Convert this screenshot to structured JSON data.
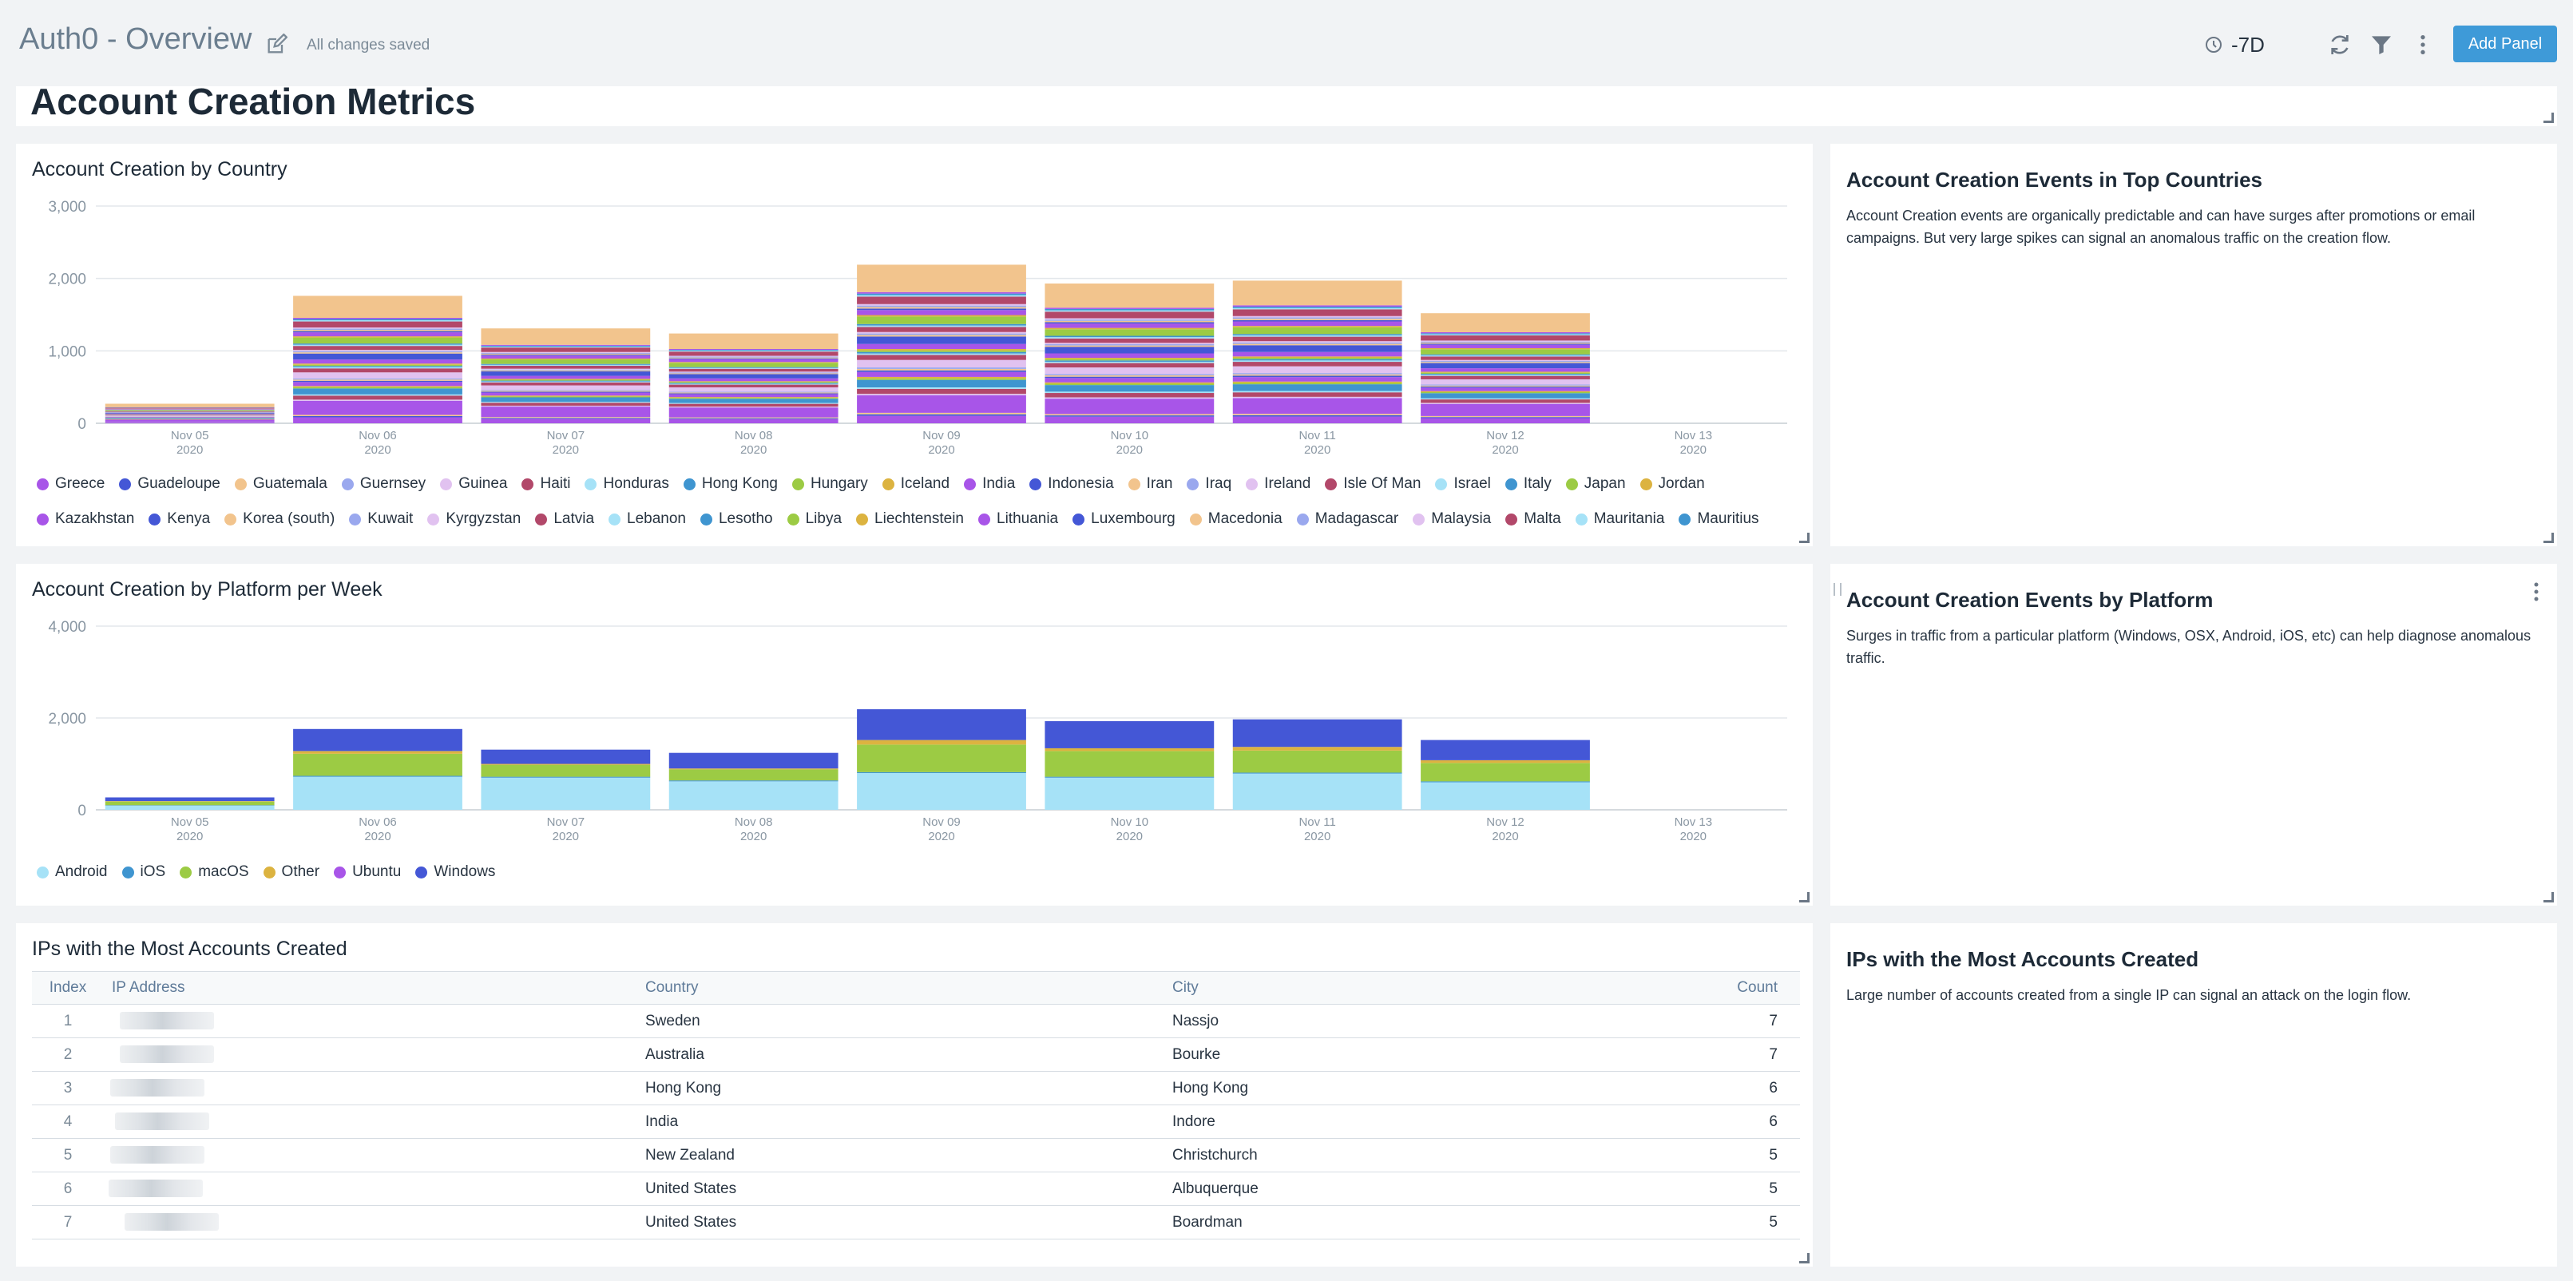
{
  "header": {
    "title": "Auth0 - Overview",
    "saved_status": "All changes saved",
    "time_range": "-7D",
    "add_panel_label": "Add Panel"
  },
  "section_title": "Account Creation Metrics",
  "panels": {
    "country_chart": {
      "title": "Account Creation by Country"
    },
    "country_text": {
      "title": "Account Creation Events in Top Countries",
      "body": "Account Creation events are organically predictable and can have surges after promotions or email campaigns. But very large spikes can signal an anomalous traffic on the creation flow."
    },
    "platform_chart": {
      "title": "Account Creation by Platform per Week"
    },
    "platform_text": {
      "title": "Account Creation Events by Platform",
      "body": "Surges in traffic from a particular platform (Windows, OSX, Android, iOS, etc) can help diagnose anomalous traffic."
    },
    "ip_table": {
      "title": "IPs with the Most Accounts Created"
    },
    "ip_text": {
      "title": "IPs with the Most Accounts Created",
      "body": "Large number of accounts created from a single IP can signal an attack on the login flow."
    }
  },
  "ip_table": {
    "columns": [
      "Index",
      "IP Address",
      "Country",
      "City",
      "Count"
    ],
    "rows": [
      {
        "index": "1",
        "country": "Sweden",
        "city": "Nassjo",
        "count": "7"
      },
      {
        "index": "2",
        "country": "Australia",
        "city": "Bourke",
        "count": "7"
      },
      {
        "index": "3",
        "country": "Hong Kong",
        "city": "Hong Kong",
        "count": "6"
      },
      {
        "index": "4",
        "country": "India",
        "city": "Indore",
        "count": "6"
      },
      {
        "index": "5",
        "country": "New Zealand",
        "city": "Christchurch",
        "count": "5"
      },
      {
        "index": "6",
        "country": "United States",
        "city": "Albuquerque",
        "count": "5"
      },
      {
        "index": "7",
        "country": "United States",
        "city": "Boardman",
        "count": "5"
      }
    ]
  },
  "chart_data": [
    {
      "type": "bar",
      "stacked": true,
      "title": "Account Creation by Country",
      "categories": [
        "Nov 05",
        "Nov 06",
        "Nov 07",
        "Nov 08",
        "Nov 09",
        "Nov 10",
        "Nov 11",
        "Nov 12",
        "Nov 13"
      ],
      "category_sublabels": [
        "2020",
        "2020",
        "2020",
        "2020",
        "2020",
        "2020",
        "2020",
        "2020",
        "2020"
      ],
      "ylim": [
        0,
        3000
      ],
      "yticks": [
        0,
        1000,
        2000,
        3000
      ],
      "ytick_labels": [
        "0",
        "1,000",
        "2,000",
        "3,000"
      ],
      "totals": [
        270,
        1760,
        1310,
        1240,
        2190,
        1930,
        1970,
        1520,
        0
      ],
      "grid": true,
      "legend_position": "bottom",
      "legend": [
        {
          "name": "Greece",
          "color": "#a855e8"
        },
        {
          "name": "Guadeloupe",
          "color": "#4457d6"
        },
        {
          "name": "Guatemala",
          "color": "#f2c48d"
        },
        {
          "name": "Guernsey",
          "color": "#9aa8ee"
        },
        {
          "name": "Guinea",
          "color": "#e1c2f0"
        },
        {
          "name": "Haiti",
          "color": "#b2486a"
        },
        {
          "name": "Honduras",
          "color": "#a6e2f7"
        },
        {
          "name": "Hong Kong",
          "color": "#3f95d0"
        },
        {
          "name": "Hungary",
          "color": "#9ccb44"
        },
        {
          "name": "Iceland",
          "color": "#dcb340"
        },
        {
          "name": "India",
          "color": "#a855e8"
        },
        {
          "name": "Indonesia",
          "color": "#4457d6"
        },
        {
          "name": "Iran",
          "color": "#f2c48d"
        },
        {
          "name": "Iraq",
          "color": "#9aa8ee"
        },
        {
          "name": "Ireland",
          "color": "#e1c2f0"
        },
        {
          "name": "Isle Of Man",
          "color": "#b2486a"
        },
        {
          "name": "Israel",
          "color": "#a6e2f7"
        },
        {
          "name": "Italy",
          "color": "#3f95d0"
        },
        {
          "name": "Japan",
          "color": "#9ccb44"
        },
        {
          "name": "Jordan",
          "color": "#dcb340"
        },
        {
          "name": "Kazakhstan",
          "color": "#a855e8"
        },
        {
          "name": "Kenya",
          "color": "#4457d6"
        },
        {
          "name": "Korea (south)",
          "color": "#f2c48d"
        },
        {
          "name": "Kuwait",
          "color": "#9aa8ee"
        },
        {
          "name": "Kyrgyzstan",
          "color": "#e1c2f0"
        },
        {
          "name": "Latvia",
          "color": "#b2486a"
        },
        {
          "name": "Lebanon",
          "color": "#a6e2f7"
        },
        {
          "name": "Lesotho",
          "color": "#3f95d0"
        },
        {
          "name": "Libya",
          "color": "#9ccb44"
        },
        {
          "name": "Liechtenstein",
          "color": "#dcb340"
        },
        {
          "name": "Lithuania",
          "color": "#a855e8"
        },
        {
          "name": "Luxembourg",
          "color": "#4457d6"
        },
        {
          "name": "Macedonia",
          "color": "#f2c48d"
        },
        {
          "name": "Madagascar",
          "color": "#9aa8ee"
        },
        {
          "name": "Malaysia",
          "color": "#e1c2f0"
        },
        {
          "name": "Malta",
          "color": "#b2486a"
        },
        {
          "name": "Mauritania",
          "color": "#a6e2f7"
        },
        {
          "name": "Mauritius",
          "color": "#3f95d0"
        }
      ]
    },
    {
      "type": "bar",
      "stacked": true,
      "title": "Account Creation by Platform per Week",
      "categories": [
        "Nov 05",
        "Nov 06",
        "Nov 07",
        "Nov 08",
        "Nov 09",
        "Nov 10",
        "Nov 11",
        "Nov 12",
        "Nov 13"
      ],
      "category_sublabels": [
        "2020",
        "2020",
        "2020",
        "2020",
        "2020",
        "2020",
        "2020",
        "2020",
        "2020"
      ],
      "ylim": [
        0,
        4000
      ],
      "yticks": [
        0,
        2000,
        4000
      ],
      "ytick_labels": [
        "0",
        "2,000",
        "4,000"
      ],
      "grid": true,
      "legend_position": "bottom",
      "series": [
        {
          "name": "Android",
          "color": "#a6e2f7",
          "values": [
            90,
            720,
            700,
            620,
            800,
            700,
            790,
            600,
            0
          ]
        },
        {
          "name": "iOS",
          "color": "#3f95d0",
          "values": [
            10,
            20,
            20,
            20,
            20,
            20,
            20,
            20,
            0
          ]
        },
        {
          "name": "macOS",
          "color": "#9ccb44",
          "values": [
            80,
            480,
            260,
            240,
            600,
            560,
            480,
            400,
            0
          ]
        },
        {
          "name": "Other",
          "color": "#dcb340",
          "values": [
            10,
            60,
            20,
            20,
            100,
            60,
            80,
            60,
            0
          ]
        },
        {
          "name": "Ubuntu",
          "color": "#a855e8",
          "values": [
            0,
            0,
            0,
            0,
            0,
            0,
            0,
            0,
            0
          ]
        },
        {
          "name": "Windows",
          "color": "#4457d6",
          "values": [
            80,
            480,
            310,
            340,
            670,
            590,
            600,
            440,
            0
          ]
        }
      ]
    }
  ]
}
